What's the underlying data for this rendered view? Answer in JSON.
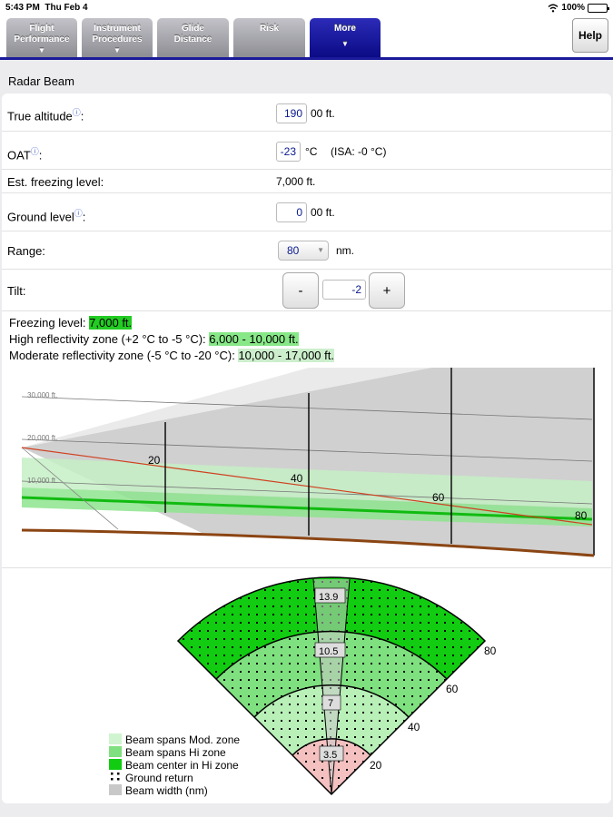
{
  "status_bar": {
    "time": "5:43 PM",
    "date": "Thu Feb 4",
    "battery": "100%",
    "battery_level": 1.0
  },
  "tabs": [
    {
      "line1": "Flight",
      "line2": "Performance",
      "has_menu": true,
      "active": false
    },
    {
      "line1": "Instrument",
      "line2": "Procedures",
      "has_menu": true,
      "active": false
    },
    {
      "line1": "Glide",
      "line2": "Distance",
      "has_menu": false,
      "active": false
    },
    {
      "line1": "Risk",
      "line2": "",
      "has_menu": false,
      "active": false
    },
    {
      "line1": "More",
      "line2": "",
      "has_menu": true,
      "active": true
    }
  ],
  "help_label": "Help",
  "section_title": "Radar Beam",
  "form": {
    "true_altitude": {
      "label": "True altitude",
      "value": "190",
      "unit": "00 ft."
    },
    "oat": {
      "label": "OAT",
      "value": "-23",
      "unit": "°C",
      "isa": "(ISA: -0 °C)"
    },
    "est_freezing": {
      "label": "Est. freezing level:",
      "value": "7,000 ft."
    },
    "ground_level": {
      "label": "Ground level",
      "value": "0",
      "unit": "00 ft."
    },
    "range": {
      "label": "Range:",
      "value": "80",
      "unit": "nm."
    },
    "tilt": {
      "label": "Tilt:",
      "value": "-2",
      "minus": "-",
      "plus": "+"
    }
  },
  "zones": {
    "freezing_label": "Freezing level:",
    "freezing_value": "7,000 ft.",
    "high_label": "High reflectivity zone (+2 °C to -5 °C):",
    "high_value": "6,000 - 10,000 ft.",
    "moderate_label": "Moderate reflectivity zone (-5 °C to -20 °C):",
    "moderate_value": "10,000 - 17,000 ft."
  },
  "profile": {
    "altitude_labels": [
      "30,000 ft.",
      "20,000 ft.",
      "10,000 ft."
    ],
    "range_labels": [
      "20",
      "40",
      "60",
      "80"
    ]
  },
  "plan": {
    "range_labels": [
      "20",
      "40",
      "60",
      "80"
    ],
    "beam_widths": [
      "3.5",
      "7",
      "10.5",
      "13.9"
    ],
    "legend": [
      "Beam spans Mod. zone",
      "Beam spans Hi zone",
      "Beam center in Hi zone",
      "Ground return",
      "Beam width (nm)"
    ]
  },
  "colors": {
    "tab_active": "#1a1a9a",
    "mod_zone": "#c8f0c8",
    "hi_zone": "#7fe07f",
    "hi_center": "#11cc11",
    "ground": "#8b4513",
    "beam_center": "#d04020",
    "beam_width": "#c8c8c8"
  },
  "icons": {
    "wifi": "wifi-icon",
    "info": "info-icon",
    "battery": "battery-icon",
    "menu": "triangle-down-icon"
  }
}
